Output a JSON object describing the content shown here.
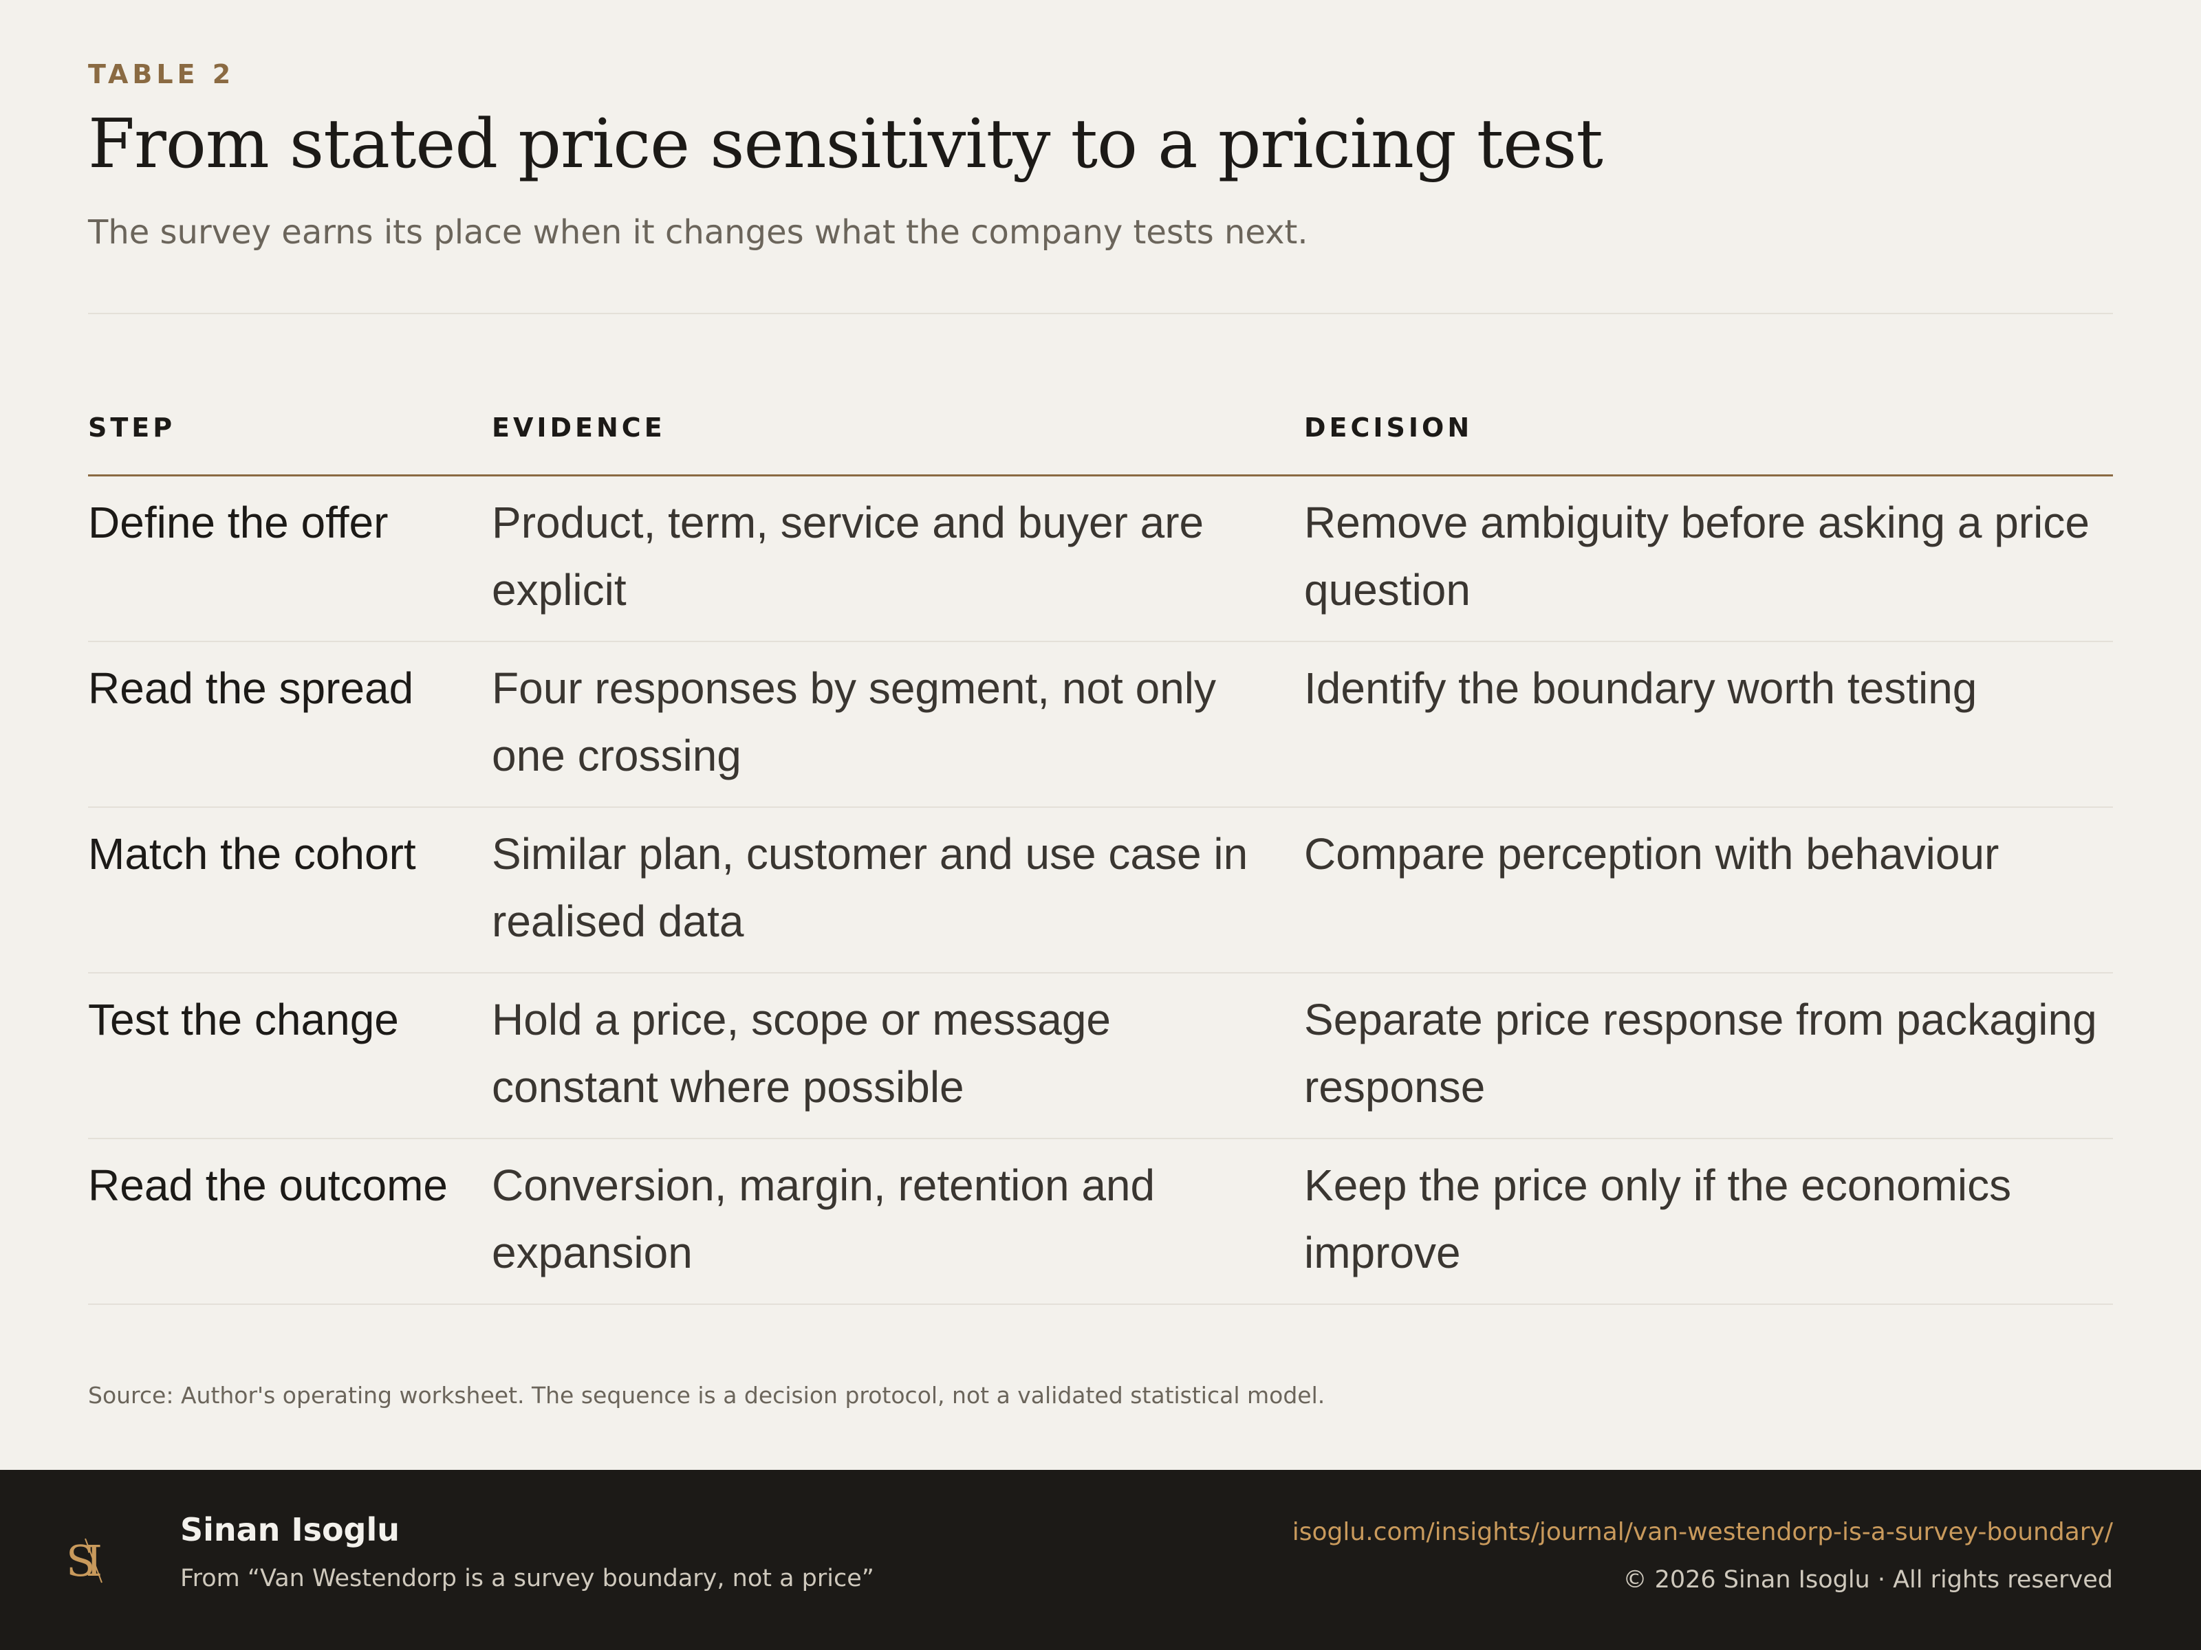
{
  "header": {
    "eyebrow": "TABLE 2",
    "title": "From stated price sensitivity to a pricing test",
    "subtitle": "The survey earns its place when it changes what the company tests next."
  },
  "table": {
    "columns": [
      "STEP",
      "EVIDENCE",
      "DECISION"
    ],
    "rows": [
      {
        "step": "Define the offer",
        "evidence": "Product, term, service and buyer are explicit",
        "decision": "Remove ambiguity before asking a price question"
      },
      {
        "step": "Read the spread",
        "evidence": "Four responses by segment, not only one crossing",
        "decision": "Identify the boundary worth testing"
      },
      {
        "step": "Match the cohort",
        "evidence": "Similar plan, customer and use case in realised data",
        "decision": "Compare perception with behaviour"
      },
      {
        "step": "Test the change",
        "evidence": "Hold a price, scope or message constant where possible",
        "decision": "Separate price response from packaging response"
      },
      {
        "step": "Read the outcome",
        "evidence": "Conversion, margin, retention and expansion",
        "decision": "Keep the price only if the economics improve"
      }
    ]
  },
  "source": "Source: Author's operating worksheet. The sequence is a decision protocol, not a validated statistical model.",
  "footer": {
    "logo_text": "SI",
    "author": "Sinan Isoglu",
    "from": "From “Van Westendorp is a survey boundary, not a price”",
    "url": "isoglu.com/insights/journal/van-westendorp-is-a-survey-boundary/",
    "copyright": "© 2026 Sinan Isoglu · All rights reserved"
  },
  "colors": {
    "background": "#f3f1ec",
    "accent": "#8a6a42",
    "footer_bg": "#1c1a17",
    "link": "#c99a5c"
  }
}
